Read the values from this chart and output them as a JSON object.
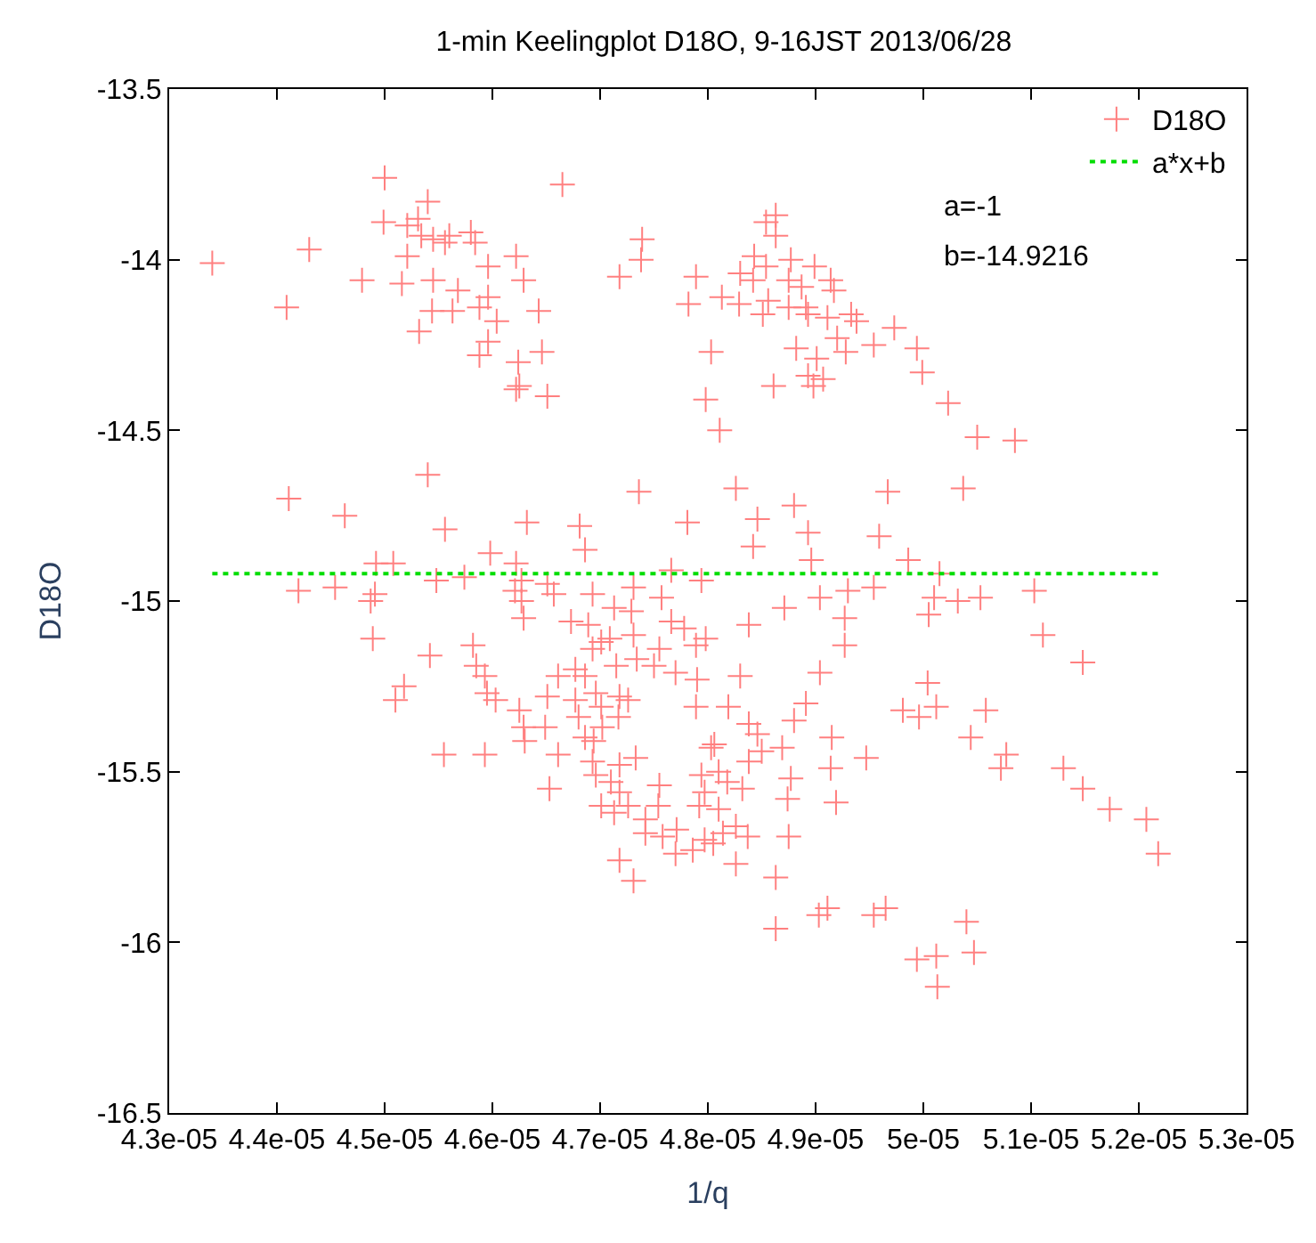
{
  "chart_data": {
    "type": "scatter",
    "title": "1-min Keelingplot D18O, 9-16JST 2013/06/28",
    "xlabel": "1/q",
    "ylabel": "D18O",
    "xlim": [
      4.3e-05,
      5.3e-05
    ],
    "xticks": [
      {
        "value": 4.3e-05,
        "label": "4.3e-05"
      },
      {
        "value": 4.4e-05,
        "label": "4.4e-05"
      },
      {
        "value": 4.5e-05,
        "label": "4.5e-05"
      },
      {
        "value": 4.6e-05,
        "label": "4.6e-05"
      },
      {
        "value": 4.7e-05,
        "label": "4.7e-05"
      },
      {
        "value": 4.8e-05,
        "label": "4.8e-05"
      },
      {
        "value": 4.9e-05,
        "label": "4.9e-05"
      },
      {
        "value": 5e-05,
        "label": "5e-05"
      },
      {
        "value": 5.1e-05,
        "label": "5.1e-05"
      },
      {
        "value": 5.2e-05,
        "label": "5.2e-05"
      },
      {
        "value": 5.3e-05,
        "label": "5.3e-05"
      }
    ],
    "ylim": [
      -16.5,
      -13.5
    ],
    "yticks": [
      -16.5,
      -16,
      -15.5,
      -15,
      -14.5,
      -14,
      -13.5
    ],
    "legend": "top right",
    "annotations": [
      "a=-1",
      "b=-14.9216"
    ],
    "series": [
      {
        "name": "D18O",
        "marker": "cross",
        "color": "#ff8080",
        "x": [
          4.34e-05,
          4.43e-05,
          4.409e-05,
          4.5e-05,
          4.499e-05,
          4.479e-05,
          4.516e-05,
          4.521e-05,
          4.521e-05,
          4.531e-05,
          4.54e-05,
          4.534e-05,
          4.545e-05,
          4.556e-05,
          4.56e-05,
          4.545e-05,
          4.544e-05,
          4.532e-05,
          4.563e-05,
          4.568e-05,
          4.58e-05,
          4.584e-05,
          4.596e-05,
          4.596e-05,
          4.588e-05,
          4.604e-05,
          4.596e-05,
          4.588e-05,
          4.622e-05,
          4.629e-05,
          4.643e-05,
          4.646e-05,
          4.624e-05,
          4.625e-05,
          4.622e-05,
          4.651e-05,
          4.665e-05,
          4.718e-05,
          4.739e-05,
          4.738e-05,
          4.782e-05,
          4.789e-05,
          4.803e-05,
          4.798e-05,
          4.54e-05,
          4.411e-05,
          4.463e-05,
          4.556e-05,
          4.632e-05,
          4.681e-05,
          4.686e-05,
          4.598e-05,
          4.736e-05,
          4.781e-05,
          4.492e-05,
          4.508e-05,
          4.42e-05,
          4.454e-05,
          4.491e-05,
          4.487e-05,
          4.548e-05,
          4.574e-05,
          4.622e-05,
          4.627e-05,
          4.621e-05,
          4.627e-05,
          4.651e-05,
          4.657e-05,
          4.693e-05,
          4.713e-05,
          4.729e-05,
          4.731e-05,
          4.757e-05,
          4.766e-05,
          4.794e-05,
          4.489e-05,
          4.542e-05,
          4.518e-05,
          4.51e-05,
          4.555e-05,
          4.593e-05,
          4.582e-05,
          4.585e-05,
          4.593e-05,
          4.595e-05,
          4.603e-05,
          4.625e-05,
          4.629e-05,
          4.63e-05,
          4.629e-05,
          4.649e-05,
          4.653e-05,
          4.661e-05,
          4.651e-05,
          4.661e-05,
          4.673e-05,
          4.677e-05,
          4.677e-05,
          4.68e-05,
          4.686e-05,
          4.689e-05,
          4.686e-05,
          4.694e-05,
          4.696e-05,
          4.701e-05,
          4.702e-05,
          4.693e-05,
          4.696e-05,
          4.693e-05,
          4.701e-05,
          4.709e-05,
          4.715e-05,
          4.718e-05,
          4.717e-05,
          4.71e-05,
          4.718e-05,
          4.718e-05,
          4.701e-05,
          4.713e-05,
          4.726e-05,
          4.733e-05,
          4.718e-05,
          4.731e-05,
          4.726e-05,
          4.731e-05,
          4.734e-05,
          4.742e-05,
          4.742e-05,
          4.75e-05,
          4.755e-05,
          4.755e-05,
          4.754e-05,
          4.758e-05,
          4.766e-05,
          4.77e-05,
          4.771e-05,
          4.778e-05,
          4.789e-05,
          4.79e-05,
          4.789e-05,
          4.798e-05,
          4.794e-05,
          4.797e-05,
          4.792e-05,
          4.803e-05,
          4.797e-05,
          4.786e-05,
          4.77e-05,
          4.805e-05,
          4.863e-05,
          4.854e-05,
          4.863e-05,
          4.843e-05,
          4.854e-05,
          4.842e-05,
          4.83e-05,
          4.813e-05,
          4.829e-05,
          4.851e-05,
          4.856e-05,
          4.877e-05,
          4.875e-05,
          4.887e-05,
          4.899e-05,
          4.914e-05,
          4.917e-05,
          4.891e-05,
          4.875e-05,
          4.893e-05,
          4.911e-05,
          4.933e-05,
          4.938e-05,
          4.973e-05,
          4.954e-05,
          4.92e-05,
          4.928e-05,
          4.882e-05,
          4.901e-05,
          4.893e-05,
          4.907e-05,
          4.898e-05,
          4.861e-05,
          4.811e-05,
          4.994e-05,
          4.999e-05,
          5.023e-05,
          5.05e-05,
          5.085e-05,
          4.826e-05,
          4.846e-05,
          4.842e-05,
          4.88e-05,
          4.893e-05,
          4.896e-05,
          4.959e-05,
          4.967e-05,
          5.037e-05,
          4.986e-05,
          5.015e-05,
          4.904e-05,
          4.93e-05,
          4.954e-05,
          4.871e-05,
          4.927e-05,
          5.01e-05,
          5.005e-05,
          5.032e-05,
          5.053e-05,
          5.103e-05,
          4.838e-05,
          5.111e-05,
          5.148e-05,
          5.004e-05,
          5.012e-05,
          4.981e-05,
          4.996e-05,
          5.058e-05,
          5.044e-05,
          5.077e-05,
          5.072e-05,
          5.13e-05,
          5.148e-05,
          5.173e-05,
          5.207e-05,
          5.218e-05,
          4.927e-05,
          4.904e-05,
          4.83e-05,
          4.819e-05,
          4.891e-05,
          4.88e-05,
          4.838e-05,
          4.846e-05,
          4.806e-05,
          4.85e-05,
          4.869e-05,
          4.838e-05,
          4.915e-05,
          4.914e-05,
          4.947e-05,
          4.877e-05,
          4.874e-05,
          4.919e-05,
          4.81e-05,
          4.818e-05,
          4.832e-05,
          4.81e-05,
          4.814e-05,
          4.826e-05,
          4.837e-05,
          4.875e-05,
          4.826e-05,
          4.863e-05,
          4.863e-05,
          4.903e-05,
          4.911e-05,
          4.954e-05,
          4.965e-05,
          5.04e-05,
          5.047e-05,
          4.994e-05,
          5.012e-05,
          5.013e-05
        ],
        "values": [
          -14.01,
          -13.97,
          -14.14,
          -13.76,
          -13.89,
          -14.06,
          -14.07,
          -13.99,
          -13.9,
          -13.88,
          -13.83,
          -13.93,
          -13.94,
          -13.95,
          -13.93,
          -14.06,
          -14.15,
          -14.21,
          -14.15,
          -14.09,
          -13.92,
          -13.95,
          -14.02,
          -14.11,
          -14.14,
          -14.18,
          -14.24,
          -14.28,
          -13.99,
          -14.06,
          -14.15,
          -14.27,
          -14.3,
          -14.37,
          -14.38,
          -14.4,
          -13.78,
          -14.05,
          -13.94,
          -14.0,
          -14.13,
          -14.05,
          -14.27,
          -14.41,
          -14.63,
          -14.7,
          -14.75,
          -14.79,
          -14.77,
          -14.78,
          -14.85,
          -14.86,
          -14.68,
          -14.77,
          -14.89,
          -14.89,
          -14.97,
          -14.96,
          -14.98,
          -15.0,
          -14.94,
          -14.93,
          -14.89,
          -14.94,
          -14.97,
          -15.0,
          -14.95,
          -14.98,
          -14.98,
          -15.02,
          -15.03,
          -14.96,
          -14.99,
          -14.91,
          -14.94,
          -15.11,
          -15.16,
          -15.25,
          -15.29,
          -15.45,
          -15.45,
          -15.13,
          -15.19,
          -15.22,
          -15.27,
          -15.29,
          -15.32,
          -15.37,
          -15.41,
          -15.05,
          -15.37,
          -15.55,
          -15.45,
          -15.28,
          -15.22,
          -15.06,
          -15.29,
          -15.2,
          -15.34,
          -15.22,
          -15.07,
          -15.4,
          -15.41,
          -15.27,
          -15.31,
          -15.37,
          -15.47,
          -15.51,
          -15.14,
          -15.12,
          -15.11,
          -15.19,
          -15.28,
          -15.34,
          -15.53,
          -15.48,
          -15.56,
          -15.6,
          -15.62,
          -15.6,
          -15.46,
          -15.76,
          -15.82,
          -15.29,
          -15.1,
          -15.17,
          -15.64,
          -15.68,
          -15.19,
          -15.54,
          -15.14,
          -15.6,
          -15.69,
          -15.06,
          -15.21,
          -15.67,
          -15.08,
          -15.13,
          -15.23,
          -15.31,
          -15.11,
          -15.51,
          -15.56,
          -15.6,
          -15.43,
          -15.7,
          -15.73,
          -15.74,
          -15.71,
          -13.87,
          -13.89,
          -13.93,
          -13.99,
          -14.02,
          -14.06,
          -14.04,
          -14.11,
          -14.13,
          -14.16,
          -14.12,
          -14.0,
          -14.06,
          -14.08,
          -14.02,
          -14.06,
          -14.09,
          -14.14,
          -14.14,
          -14.16,
          -14.17,
          -14.16,
          -14.18,
          -14.2,
          -14.25,
          -14.23,
          -14.27,
          -14.26,
          -14.29,
          -14.34,
          -14.35,
          -14.37,
          -14.37,
          -14.5,
          -14.26,
          -14.33,
          -14.42,
          -14.52,
          -14.53,
          -14.67,
          -14.76,
          -14.84,
          -14.72,
          -14.8,
          -14.88,
          -14.81,
          -14.68,
          -14.67,
          -14.88,
          -14.92,
          -14.99,
          -14.97,
          -14.96,
          -15.02,
          -15.05,
          -14.99,
          -15.04,
          -15.0,
          -14.99,
          -14.97,
          -15.07,
          -15.1,
          -15.18,
          -15.24,
          -15.31,
          -15.32,
          -15.34,
          -15.32,
          -15.4,
          -15.45,
          -15.49,
          -15.49,
          -15.55,
          -15.61,
          -15.64,
          -15.74,
          -15.13,
          -15.21,
          -15.22,
          -15.31,
          -15.3,
          -15.35,
          -15.36,
          -15.39,
          -15.42,
          -15.44,
          -15.43,
          -15.47,
          -15.4,
          -15.49,
          -15.46,
          -15.52,
          -15.58,
          -15.59,
          -15.5,
          -15.53,
          -15.55,
          -15.61,
          -15.68,
          -15.66,
          -15.69,
          -15.69,
          -15.77,
          -15.81,
          -15.96,
          -15.92,
          -15.9,
          -15.92,
          -15.9,
          -15.94,
          -16.03,
          -16.05,
          -16.04,
          -16.13
        ]
      },
      {
        "name": "a*x+b",
        "type": "line",
        "line_style": "dotted",
        "color": "#00dd00",
        "x": [
          4.34e-05,
          5.22e-05
        ],
        "values": [
          -14.92,
          -14.92
        ]
      }
    ]
  }
}
